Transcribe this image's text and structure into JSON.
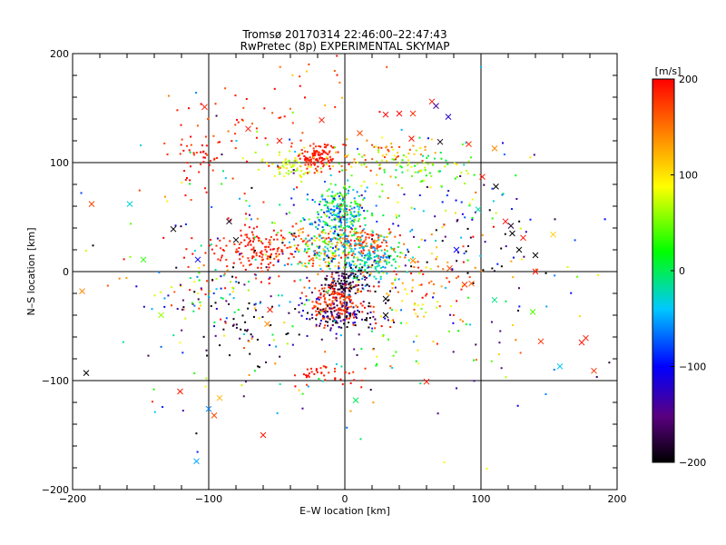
{
  "chart_data": {
    "type": "scatter",
    "title": "Tromsø 20170314 22:46:00–22:47:43",
    "subtitle": "RwPretec (8p) EXPERIMENTAL SKYMAP",
    "xlabel": "E–W location [km]",
    "ylabel": "N–S location [km]",
    "xlim": [
      -200,
      200
    ],
    "ylim": [
      -200,
      200
    ],
    "xticks": [
      "−200",
      "−100",
      "0",
      "100",
      "200"
    ],
    "yticks": [
      "−200",
      "−100",
      "0",
      "100",
      "200"
    ],
    "grid": true,
    "markers": [
      "dot",
      "cross"
    ],
    "colorbar": {
      "label": "[m/s]",
      "range": [
        -200,
        200
      ],
      "ticks": [
        "−200",
        "−100",
        "0",
        "100",
        "200"
      ],
      "colormap": [
        "#000000",
        "#5a0080",
        "#0000ff",
        "#00c8ff",
        "#00ff00",
        "#ffff00",
        "#ff8000",
        "#ff0000"
      ]
    },
    "clusters": [
      {
        "x": -20,
        "y": 105,
        "sx": 8,
        "sy": 6,
        "n": 120,
        "v": 190,
        "dv": 15
      },
      {
        "x": -40,
        "y": 97,
        "sx": 10,
        "sy": 6,
        "n": 60,
        "v": 80,
        "dv": 25
      },
      {
        "x": 20,
        "y": 105,
        "sx": 20,
        "sy": 10,
        "n": 80,
        "v": 120,
        "dv": 80
      },
      {
        "x": 60,
        "y": 92,
        "sx": 20,
        "sy": 10,
        "n": 60,
        "v": 40,
        "dv": 60
      },
      {
        "x": -5,
        "y": 55,
        "sx": 12,
        "sy": 12,
        "n": 260,
        "v": -20,
        "dv": 80
      },
      {
        "x": 15,
        "y": 25,
        "sx": 12,
        "sy": 8,
        "n": 120,
        "v": 170,
        "dv": 30
      },
      {
        "x": 20,
        "y": 10,
        "sx": 12,
        "sy": 10,
        "n": 160,
        "v": -30,
        "dv": 40
      },
      {
        "x": -60,
        "y": 20,
        "sx": 22,
        "sy": 12,
        "n": 180,
        "v": 190,
        "dv": 20
      },
      {
        "x": -15,
        "y": 20,
        "sx": 12,
        "sy": 10,
        "n": 160,
        "v": 40,
        "dv": 130
      },
      {
        "x": 0,
        "y": -10,
        "sx": 8,
        "sy": 8,
        "n": 120,
        "v": -180,
        "dv": 30
      },
      {
        "x": -5,
        "y": -30,
        "sx": 10,
        "sy": 10,
        "n": 160,
        "v": 180,
        "dv": 25
      },
      {
        "x": -5,
        "y": -40,
        "sx": 15,
        "sy": 8,
        "n": 120,
        "v": -160,
        "dv": 60
      },
      {
        "x": -110,
        "y": -20,
        "sx": 15,
        "sy": 15,
        "n": 50,
        "v": 0,
        "dv": 200
      },
      {
        "x": -75,
        "y": -45,
        "sx": 20,
        "sy": 20,
        "n": 50,
        "v": -180,
        "dv": 40
      },
      {
        "x": -15,
        "y": -95,
        "sx": 12,
        "sy": 6,
        "n": 40,
        "v": 190,
        "dv": 15
      },
      {
        "x": 60,
        "y": -10,
        "sx": 30,
        "sy": 25,
        "n": 70,
        "v": 150,
        "dv": 80
      },
      {
        "x": -110,
        "y": 100,
        "sx": 12,
        "sy": 15,
        "n": 40,
        "v": 190,
        "dv": 20
      },
      {
        "x": 100,
        "y": 40,
        "sx": 20,
        "sy": 20,
        "n": 40,
        "v": -150,
        "dv": 80
      },
      {
        "x": 0,
        "y": 0,
        "sx": 80,
        "sy": 70,
        "n": 450,
        "v": 0,
        "dv": 200
      },
      {
        "x": -60,
        "y": 140,
        "sx": 40,
        "sy": 25,
        "n": 60,
        "v": 180,
        "dv": 40
      }
    ],
    "crosses": [
      [
        -186,
        62,
        170
      ],
      [
        -158,
        62,
        -30
      ],
      [
        -193,
        -18,
        140
      ],
      [
        -190,
        -93,
        -200
      ],
      [
        -148,
        11,
        30
      ],
      [
        -126,
        39,
        -200
      ],
      [
        -121,
        -110,
        190
      ],
      [
        -108,
        11,
        -100
      ],
      [
        -109,
        -174,
        -50
      ],
      [
        -100,
        -126,
        -60
      ],
      [
        -96,
        -132,
        170
      ],
      [
        -92,
        -116,
        120
      ],
      [
        -103,
        151,
        190
      ],
      [
        -85,
        46,
        -190
      ],
      [
        -80,
        29,
        -200
      ],
      [
        -71,
        131,
        190
      ],
      [
        -57,
        -48,
        140
      ],
      [
        -60,
        -150,
        190
      ],
      [
        -48,
        120,
        190
      ],
      [
        -55,
        -35,
        190
      ],
      [
        -17,
        139,
        190
      ],
      [
        11,
        127,
        170
      ],
      [
        30,
        144,
        200
      ],
      [
        40,
        145,
        200
      ],
      [
        50,
        145,
        180
      ],
      [
        49,
        122,
        195
      ],
      [
        64,
        156,
        190
      ],
      [
        67,
        152,
        -140
      ],
      [
        76,
        142,
        -120
      ],
      [
        70,
        119,
        -190
      ],
      [
        91,
        117,
        180
      ],
      [
        101,
        87,
        190
      ],
      [
        110,
        113,
        140
      ],
      [
        111,
        78,
        -200
      ],
      [
        118,
        46,
        195
      ],
      [
        122,
        42,
        -180
      ],
      [
        123,
        35,
        -200
      ],
      [
        128,
        20,
        -200
      ],
      [
        131,
        31,
        195
      ],
      [
        140,
        15,
        -200
      ],
      [
        98,
        57,
        -20
      ],
      [
        82,
        20,
        -100
      ],
      [
        77,
        3,
        170
      ],
      [
        88,
        -12,
        180
      ],
      [
        93,
        -11,
        160
      ],
      [
        110,
        -26,
        -10
      ],
      [
        138,
        -37,
        40
      ],
      [
        144,
        -64,
        180
      ],
      [
        140,
        0,
        190
      ],
      [
        153,
        34,
        110
      ],
      [
        174,
        -65,
        190
      ],
      [
        177,
        -61,
        190
      ],
      [
        183,
        -91,
        180
      ],
      [
        158,
        -87,
        -40
      ],
      [
        60,
        -101,
        190
      ],
      [
        30,
        -25,
        -200
      ],
      [
        30,
        -40,
        -200
      ],
      [
        50,
        10,
        140
      ],
      [
        8,
        -118,
        0
      ],
      [
        -135,
        -40,
        60
      ]
    ]
  }
}
